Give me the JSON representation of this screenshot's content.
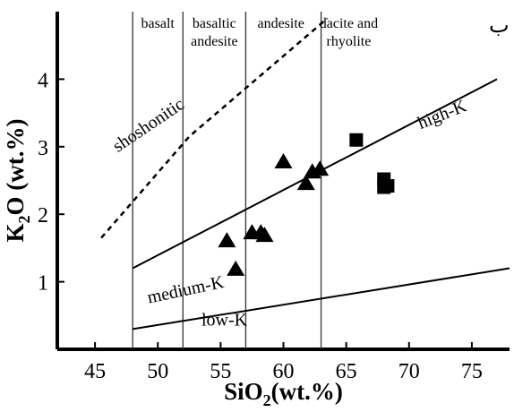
{
  "chart_data": {
    "type": "scatter",
    "corner_label": "ب",
    "xlabel": {
      "main": "SiO",
      "sub": "2",
      "rest": "(wt.%)"
    },
    "ylabel": {
      "main": "K",
      "sub": "2",
      "rest": "O (wt.%)"
    },
    "xlim": [
      42,
      78
    ],
    "ylim": [
      0,
      5
    ],
    "x_ticks": [
      45,
      50,
      55,
      60,
      65,
      70,
      75
    ],
    "y_ticks": [
      1,
      2,
      3,
      4
    ],
    "grid": false,
    "legend": "none",
    "rock_fields": [
      {
        "name": "basalt",
        "lines": [
          "basalt"
        ],
        "from": 48,
        "to": 52
      },
      {
        "name": "basaltic andesite",
        "lines": [
          "basaltic",
          "andesite"
        ],
        "from": 52,
        "to": 57
      },
      {
        "name": "andesite",
        "lines": [
          "andesite"
        ],
        "from": 57,
        "to": 63
      },
      {
        "name": "dacite and rhyolite",
        "lines": [
          "dacite and",
          "rhyolite"
        ],
        "from": 63,
        "to": 78
      }
    ],
    "field_boundaries_x": [
      48,
      52,
      57,
      63
    ],
    "series_labels": [
      {
        "name": "shoshonitic",
        "x": 49.5,
        "y": 3.25,
        "rotate": -34
      },
      {
        "name": "high-K",
        "x": 72.8,
        "y": 3.4,
        "rotate": -22
      },
      {
        "name": "medium-K",
        "x": 52.3,
        "y": 0.8,
        "rotate": -12
      },
      {
        "name": "low-K",
        "x": 55.3,
        "y": 0.35,
        "rotate": 0
      }
    ],
    "boundary_lines": [
      {
        "name": "shoshonitic",
        "style": "dashed",
        "points": [
          [
            45.5,
            1.65
          ],
          [
            52.5,
            3.15
          ],
          [
            63.5,
            4.9
          ]
        ]
      },
      {
        "name": "high-K",
        "style": "solid",
        "points": [
          [
            48,
            1.2
          ],
          [
            77,
            4.0
          ]
        ]
      },
      {
        "name": "medium-K",
        "style": "solid",
        "points": [
          [
            48,
            0.3
          ],
          [
            78,
            1.2
          ]
        ]
      }
    ],
    "series": [
      {
        "marker": "triangle",
        "color": "#000000",
        "points": [
          [
            55.5,
            1.6
          ],
          [
            56.2,
            1.18
          ],
          [
            57.5,
            1.72
          ],
          [
            58.2,
            1.72
          ],
          [
            58.5,
            1.68
          ],
          [
            60.0,
            2.77
          ],
          [
            61.8,
            2.45
          ],
          [
            62.3,
            2.62
          ],
          [
            62.9,
            2.66
          ]
        ]
      },
      {
        "marker": "square",
        "color": "#000000",
        "points": [
          [
            65.8,
            3.1
          ],
          [
            68.0,
            2.52
          ],
          [
            68.0,
            2.4
          ],
          [
            68.3,
            2.42
          ]
        ]
      }
    ]
  }
}
